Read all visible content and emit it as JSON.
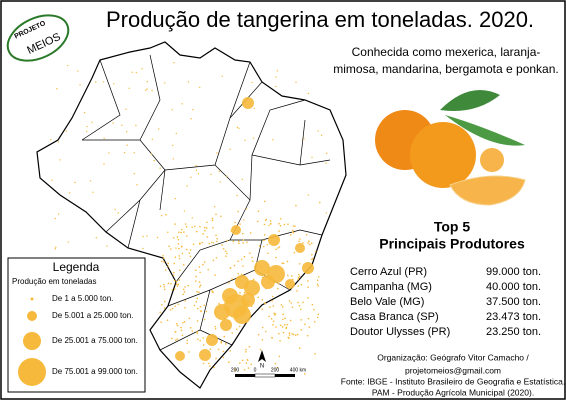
{
  "logo": {
    "line1": "PROJETO",
    "line2": "MEIOS"
  },
  "title": "Produção de tangerina em toneladas. 2020.",
  "subtitle": [
    "Conhecida como mexerica, laranja-",
    "mimosa, mandarina, bergamota e ponkan."
  ],
  "top5": {
    "title": "Top 5",
    "subtitle": "Principais Produtores",
    "rows": [
      {
        "name": "Cerro Azul (PR)",
        "value": "99.000 ton."
      },
      {
        "name": "Campanha (MG)",
        "value": "40.000 ton."
      },
      {
        "name": "Belo Vale (MG)",
        "value": "37.500 ton."
      },
      {
        "name": "Casa Branca (SP)",
        "value": "23.473 ton."
      },
      {
        "name": "Doutor Ulysses (PR)",
        "value": "23.250 ton."
      }
    ]
  },
  "legend": {
    "title": "Legenda",
    "subtitle": "Produção em toneladas",
    "classes": [
      "De 1 a 5.000 ton.",
      "De 5.001 a 25.000 ton.",
      "De 25.001 a 75.000 ton.",
      "De 75.001 a 99.000 ton."
    ]
  },
  "scale": {
    "labels": [
      "200",
      "0",
      "200",
      "400 km"
    ]
  },
  "north": "N",
  "credits": [
    "Organização: Geógrafo Vitor Camacho /",
    "projetomeios@gmail.com",
    "Fonte: IBGE - Instituto Brasileiro de Geografia e Estatística.",
    "PAM - Produção Agrícola Municipal (2020)."
  ]
}
